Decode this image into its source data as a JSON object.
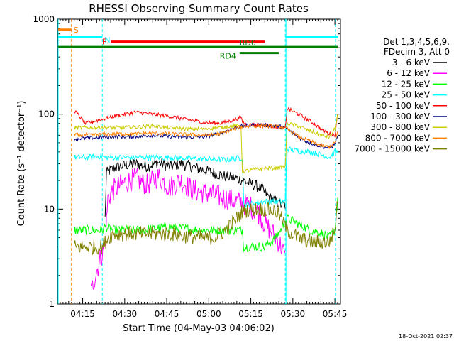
{
  "chart_data": {
    "type": "line",
    "title": "RHESSI Observing Summary Count Rates",
    "xlabel": "Start Time (04-May-03 04:06:02)",
    "ylabel": "Count Rate (s⁻¹ detector⁻¹)",
    "yscale": "log",
    "ylim": [
      1,
      1000
    ],
    "xlim_minutes": [
      0,
      101
    ],
    "y_ticks": [
      "1",
      "10",
      "100",
      "1000"
    ],
    "x_ticks": [
      {
        "minute": 9,
        "label": "04:15"
      },
      {
        "minute": 24,
        "label": "04:30"
      },
      {
        "minute": 39,
        "label": "04:45"
      },
      {
        "minute": 54,
        "label": "05:00"
      },
      {
        "minute": 69,
        "label": "05:15"
      },
      {
        "minute": 84,
        "label": "05:30"
      },
      {
        "minute": 99,
        "label": "05:45"
      }
    ],
    "legend_header": [
      "Det 1,3,4,5,6,9,",
      "FDecim 3, Att 0"
    ],
    "series": [
      {
        "name": "3 - 6 keV",
        "color": "#000000",
        "x": [
          17,
          17.5,
          20,
          24,
          28,
          32,
          36,
          40,
          44,
          48,
          52,
          56,
          60,
          64,
          68,
          70,
          72,
          74,
          76,
          78,
          80,
          81.3
        ],
        "y": [
          8,
          24,
          27,
          29,
          30,
          28,
          31,
          28,
          30,
          28,
          26,
          24,
          22,
          21,
          19,
          18,
          17,
          15,
          13,
          12,
          11,
          11
        ]
      },
      {
        "name": "6 - 12 keV",
        "color": "#ff00ff",
        "x": [
          12,
          13,
          15,
          16,
          17,
          18,
          20,
          24,
          28,
          32,
          36,
          40,
          44,
          48,
          52,
          56,
          60,
          64,
          68,
          70,
          72,
          74,
          76,
          78,
          80,
          81.3
        ],
        "y": [
          1.3,
          1.8,
          2.8,
          3.5,
          4,
          13,
          16,
          19,
          21,
          18,
          22,
          17,
          20,
          16,
          15,
          14,
          13,
          12,
          11,
          10,
          9,
          7,
          6,
          5,
          4,
          3
        ]
      },
      {
        "name": "12 - 25 keV",
        "color": "#00ff00",
        "x": [
          6,
          10,
          16,
          17,
          20,
          30,
          40,
          50,
          60,
          66,
          66.5,
          70,
          74,
          78,
          81,
          82,
          86,
          90,
          95,
          97,
          99,
          100
        ],
        "y": [
          6,
          6,
          6,
          6.5,
          6,
          6,
          6.5,
          6,
          6,
          6,
          4,
          4,
          4,
          5,
          7,
          8,
          7,
          6,
          5.5,
          5,
          6,
          13
        ]
      },
      {
        "name": "25 - 50 keV",
        "color": "#00ffff",
        "x": [
          6,
          10,
          16,
          17,
          20,
          30,
          40,
          50,
          60,
          66,
          66.5,
          70,
          74,
          78,
          81.3,
          82,
          86,
          90,
          95,
          97,
          99,
          100
        ],
        "y": [
          35,
          35,
          36,
          35,
          35,
          35,
          35,
          34,
          33,
          35,
          11,
          11.5,
          12,
          12,
          12,
          43,
          41,
          40,
          37,
          35,
          40,
          40
        ]
      },
      {
        "name": "50 - 100 keV",
        "color": "#ff0000",
        "x": [
          6,
          10,
          16,
          20,
          28,
          34,
          40,
          46,
          52,
          58,
          62,
          65.5,
          66,
          67,
          72,
          76,
          80,
          81.3,
          82,
          86,
          90,
          94,
          97,
          99,
          100
        ],
        "y": [
          110,
          80,
          88,
          95,
          105,
          100,
          95,
          88,
          82,
          80,
          85,
          93,
          85,
          78,
          76,
          75,
          72,
          70,
          115,
          100,
          85,
          70,
          62,
          60,
          100
        ]
      },
      {
        "name": "100 - 300 keV",
        "color": "#000080",
        "x": [
          6,
          10,
          16,
          20,
          28,
          34,
          40,
          46,
          52,
          58,
          62,
          66,
          72,
          76,
          80,
          82,
          86,
          90,
          94,
          97,
          99,
          100
        ],
        "y": [
          55,
          56,
          57,
          58,
          58,
          60,
          58,
          57,
          58,
          62,
          70,
          75,
          77,
          76,
          74,
          70,
          57,
          50,
          46,
          44,
          48,
          60
        ]
      },
      {
        "name": "300 - 800 keV",
        "color": "#cccc00",
        "x": [
          6,
          10,
          16,
          20,
          28,
          34,
          40,
          46,
          52,
          58,
          62,
          65.5,
          66,
          70,
          74,
          78,
          81.3,
          82,
          86,
          90,
          94,
          97,
          99,
          100
        ],
        "y": [
          72,
          72,
          73,
          72,
          73,
          75,
          72,
          70,
          70,
          72,
          75,
          75,
          25,
          26,
          27,
          27,
          28,
          80,
          75,
          67,
          60,
          57,
          70,
          100
        ]
      },
      {
        "name": "800 - 7000 keV",
        "color": "#ff8000",
        "x": [
          6,
          10,
          16,
          20,
          28,
          34,
          40,
          46,
          52,
          58,
          62,
          66,
          72,
          76,
          80,
          82,
          86,
          90,
          94,
          97,
          99,
          100
        ],
        "y": [
          60,
          60,
          61,
          62,
          62,
          63,
          62,
          61,
          60,
          62,
          68,
          74,
          76,
          75,
          73,
          70,
          58,
          52,
          47,
          45,
          50,
          65
        ]
      },
      {
        "name": "7000 - 15000 keV",
        "color": "#808000",
        "x": [
          6,
          10,
          16,
          18,
          20,
          30,
          40,
          50,
          56,
          60,
          64,
          66,
          70,
          74,
          78,
          80,
          82,
          86,
          90,
          95,
          97,
          99,
          100
        ],
        "y": [
          4,
          4,
          4,
          5,
          5.5,
          5.5,
          5.5,
          5,
          5,
          6,
          8,
          9.5,
          10,
          10,
          9.5,
          8,
          6,
          5,
          4.5,
          4.5,
          4.5,
          6,
          13
        ]
      }
    ],
    "annotations": {
      "state_bars": [
        {
          "label": "S",
          "color": "#ff8000",
          "x_start": 0,
          "x_end": 5,
          "y": 775
        },
        {
          "label": "N",
          "color": "#00ffff",
          "x_start": 0,
          "x_end": 16,
          "y": 650
        },
        {
          "label": "N",
          "color": "#00ffff",
          "x_start": 81.3,
          "x_end": 100,
          "y": 650
        },
        {
          "label": "F",
          "color": "#ff0000",
          "x_start": 19,
          "x_end": 74,
          "y": 580
        },
        {
          "label": "RD0",
          "color": "#008000",
          "x_start": 0,
          "x_end": 100,
          "y": 510
        },
        {
          "label": "RD4",
          "color": "#008000",
          "x_start": 65,
          "x_end": 79,
          "y": 440
        }
      ],
      "vertical_lines": [
        {
          "x": 5,
          "color": "#ff8000"
        },
        {
          "x": 16,
          "color": "#00ffff"
        },
        {
          "x": 81.3,
          "color": "#00ffff"
        },
        {
          "x": 99.2,
          "color": "#00ffff"
        }
      ],
      "solid_vertical_lines": [
        {
          "x": 0,
          "color": "#00ffff"
        },
        {
          "x": 81.3,
          "color": "#00ffff"
        }
      ]
    },
    "footer_date": "18-Oct-2021 02:37"
  }
}
